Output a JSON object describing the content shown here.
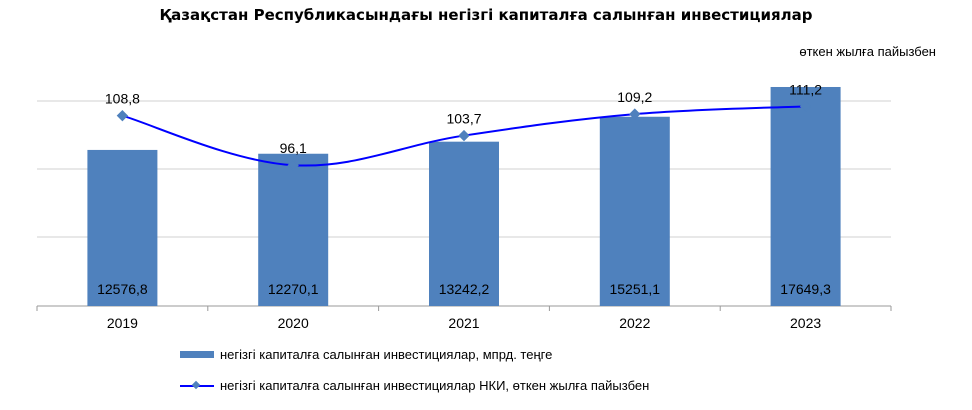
{
  "chart_data": {
    "type": "bar",
    "title": "Қазақстан Республикасындағы негізгі капиталға салынған инвестициялар",
    "subtitle": "өткен жылға пайызбен",
    "categories": [
      "2019",
      "2020",
      "2021",
      "2022",
      "2023"
    ],
    "bar_labels": [
      "12576,8",
      "12270,1",
      "13242,2",
      "15251,1",
      "17649,3"
    ],
    "line_labels": [
      "108,8",
      "96,1",
      "103,7",
      "109,2",
      "111,2"
    ],
    "series": [
      {
        "name": "негізгі капиталға  салынған инвестициялар,  мпрд. теңге",
        "type": "bar",
        "values": [
          12576.8,
          12270.1,
          13242.2,
          15251.1,
          17649.3
        ],
        "color": "#4F81BD"
      },
      {
        "name": "негізгі капиталға  салынған инвестициялар  НКИ, өткен жылға пайызбен",
        "type": "line",
        "values": [
          108.8,
          96.1,
          103.7,
          109.2,
          111.2
        ],
        "color": "#0000FF",
        "marker_color": "#4F81BD"
      }
    ],
    "bar_ylim": [
      0,
      22000
    ],
    "line_ylim": [
      60,
      130
    ],
    "grid": true,
    "legend_position": "bottom"
  }
}
